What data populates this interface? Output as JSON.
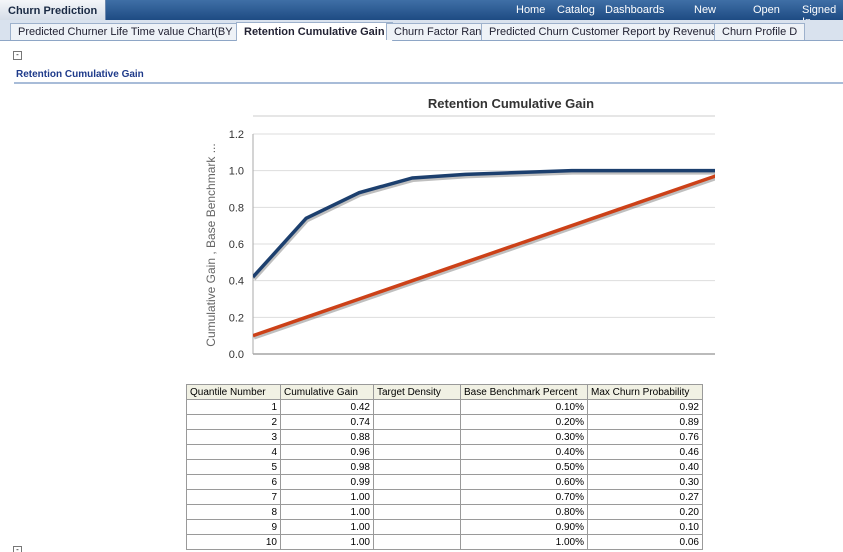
{
  "header": {
    "app_title": "Churn Prediction",
    "nav": [
      "Home",
      "Catalog",
      "Dashboards",
      "New",
      "Open",
      "Signed In"
    ]
  },
  "tabs": [
    "Predicted Churner Life Time value Chart(BY SVM)",
    "Retention Cumulative Gain",
    "Churn Factor Rank",
    "Predicted Churn Customer Report by Revenue Band",
    "Churn Profile D"
  ],
  "section_title": "Retention Cumulative Gain",
  "chart_data": {
    "type": "line",
    "title": "Retention Cumulative Gain",
    "y_label": "Cumulative Gain , Base Benchmark ...",
    "categories": [
      null,
      null,
      null,
      null,
      null,
      null,
      null,
      null,
      null,
      null
    ],
    "series": [
      {
        "color": "#1c3f6e",
        "values": [
          0.42,
          0.74,
          0.88,
          0.96,
          0.98,
          0.99,
          1.0,
          1.0,
          1.0,
          1.0
        ]
      },
      {
        "color": "#cc4118",
        "values": [
          0.1,
          0.2,
          0.3,
          0.4,
          0.5,
          0.6,
          0.7,
          0.8,
          0.9,
          1.0
        ]
      }
    ],
    "ylim": [
      0,
      1.2
    ],
    "yticks": [
      {
        "value": 0,
        "label": "0.0"
      },
      0.2,
      0.4,
      0.6,
      0.8,
      {
        "value": 1,
        "label": "1.0"
      },
      1.2
    ],
    "grid": true
  },
  "table": {
    "columns": [
      "Quantile Number",
      "Cumulative Gain",
      "Target Density",
      "Base Benchmark Percent",
      "Max Churn Probability"
    ],
    "rows": [
      [
        "1",
        "0.42",
        null,
        "0.10%",
        "0.92"
      ],
      [
        "2",
        "0.74",
        null,
        "0.20%",
        "0.89"
      ],
      [
        "3",
        "0.88",
        null,
        "0.30%",
        "0.76"
      ],
      [
        "4",
        "0.96",
        null,
        "0.40%",
        "0.46"
      ],
      [
        "5",
        "0.98",
        null,
        "0.50%",
        "0.40"
      ],
      [
        "6",
        "0.99",
        null,
        "0.60%",
        "0.30"
      ],
      [
        "7",
        "1.00",
        null,
        "0.70%",
        "0.27"
      ],
      [
        "8",
        "1.00",
        null,
        "0.80%",
        "0.20"
      ],
      [
        "9",
        "1.00",
        null,
        "0.90%",
        "0.10"
      ],
      [
        "10",
        "1.00",
        null,
        "1.00%",
        "0.06"
      ]
    ]
  }
}
